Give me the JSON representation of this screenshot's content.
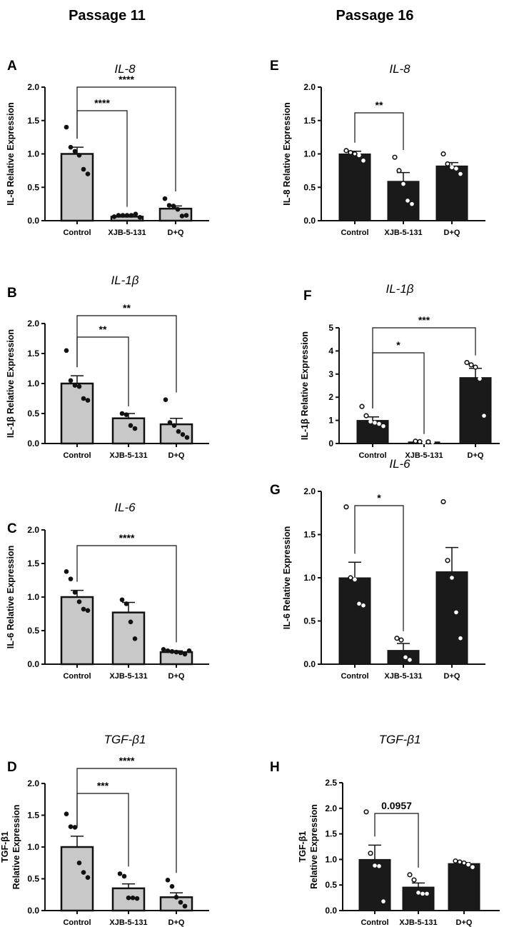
{
  "headers": [
    "Passage 11",
    "Passage 16"
  ],
  "colors": {
    "passage11_bar": "#c8c8c8",
    "passage16_bar": "#1a1a1a",
    "outline": "#111111"
  },
  "chart_data": [
    {
      "letter": "A",
      "type": "bar",
      "title": "IL-8",
      "ylabel": [
        "IL-8 Relative Expression"
      ],
      "ylim": [
        0,
        2.0
      ],
      "yticks": [
        "0.0",
        "0.5",
        "1.0",
        "1.5",
        "2.0"
      ],
      "categories": [
        "Control",
        "XJB-5-131",
        "D+Q"
      ],
      "means": [
        1.0,
        0.06,
        0.18
      ],
      "sem": [
        0.1,
        0.01,
        0.04
      ],
      "points": [
        [
          1.4,
          1.1,
          1.04,
          0.98,
          0.77,
          0.7
        ],
        [
          0.06,
          0.08,
          0.08,
          0.08,
          0.08,
          0.1,
          0.05
        ],
        [
          0.33,
          0.23,
          0.22,
          0.17,
          0.07,
          0.08
        ]
      ],
      "significance": [
        {
          "from": "Control",
          "to": "XJB-5-131",
          "label": "****"
        },
        {
          "from": "Control",
          "to": "D+Q",
          "label": "****"
        }
      ]
    },
    {
      "letter": "B",
      "type": "bar",
      "title": "IL-1β",
      "ylabel": [
        "IL-1β Relative Expression"
      ],
      "ylim": [
        0,
        2.0
      ],
      "yticks": [
        "0.0",
        "0.5",
        "1.0",
        "1.5",
        "2.0"
      ],
      "categories": [
        "Control",
        "XJB-5-131",
        "D+Q"
      ],
      "means": [
        1.0,
        0.42,
        0.32
      ],
      "sem": [
        0.13,
        0.08,
        0.1
      ],
      "points": [
        [
          1.55,
          1.05,
          0.97,
          0.95,
          0.75,
          0.72
        ],
        [
          0.5,
          0.48,
          0.3,
          0.25
        ],
        [
          0.73,
          0.35,
          0.3,
          0.2,
          0.15,
          0.1
        ]
      ],
      "significance": [
        {
          "from": "Control",
          "to": "XJB-5-131",
          "label": "**"
        },
        {
          "from": "Control",
          "to": "D+Q",
          "label": "**"
        }
      ]
    },
    {
      "letter": "C",
      "type": "bar",
      "title": "IL-6",
      "ylabel": [
        "IL-6 Relative Expression"
      ],
      "ylim": [
        0,
        2.0
      ],
      "yticks": [
        "0.0",
        "0.5",
        "1.0",
        "1.5",
        "2.0"
      ],
      "categories": [
        "Control",
        "XJB-5-131",
        "D+Q"
      ],
      "means": [
        1.0,
        0.77,
        0.18
      ],
      "sem": [
        0.1,
        0.15,
        0.02
      ],
      "points": [
        [
          1.38,
          1.27,
          1.07,
          0.93,
          0.82,
          0.8
        ],
        [
          0.96,
          0.9,
          0.63,
          0.38
        ],
        [
          0.22,
          0.2,
          0.19,
          0.18,
          0.17,
          0.15,
          0.2
        ]
      ],
      "significance": [
        {
          "from": "Control",
          "to": "D+Q",
          "label": "****"
        }
      ]
    },
    {
      "letter": "D",
      "type": "bar",
      "title": "TGF-β1",
      "ylabel": [
        "TGF-β1",
        "Relative Expression"
      ],
      "ylim": [
        0,
        2.0
      ],
      "yticks": [
        "0.0",
        "0.5",
        "1.0",
        "1.5",
        "2.0"
      ],
      "categories": [
        "Control",
        "XJB-5-131",
        "D+Q"
      ],
      "means": [
        1.0,
        0.35,
        0.21
      ],
      "sem": [
        0.17,
        0.07,
        0.07
      ],
      "points": [
        [
          1.52,
          1.32,
          1.31,
          0.75,
          0.6,
          0.52
        ],
        [
          0.58,
          0.54,
          0.2,
          0.2,
          0.19
        ],
        [
          0.48,
          0.38,
          0.21,
          0.13,
          0.07
        ]
      ],
      "significance": [
        {
          "from": "Control",
          "to": "XJB-5-131",
          "label": "***"
        },
        {
          "from": "Control",
          "to": "D+Q",
          "label": "****"
        }
      ]
    },
    {
      "letter": "E",
      "type": "bar",
      "title": "IL-8",
      "ylabel": [
        "IL-8 Relative Expression"
      ],
      "ylim": [
        0,
        2.0
      ],
      "yticks": [
        "0.0",
        "0.5",
        "1.0",
        "1.5",
        "2.0"
      ],
      "categories": [
        "Control",
        "XJB-5-131",
        "D+Q"
      ],
      "means": [
        1.0,
        0.59,
        0.82
      ],
      "sem": [
        0.04,
        0.13,
        0.05
      ],
      "points": [
        [
          1.05,
          1.02,
          1.0,
          0.98,
          0.9
        ],
        [
          0.95,
          0.75,
          0.55,
          0.3,
          0.25
        ],
        [
          1.0,
          0.85,
          0.8,
          0.78,
          0.7
        ]
      ],
      "significance": [
        {
          "from": "Control",
          "to": "XJB-5-131",
          "label": "**"
        }
      ]
    },
    {
      "letter": "F",
      "type": "bar",
      "title": "IL-1β",
      "ylabel": [
        "IL-1β Relative Expression"
      ],
      "ylim": [
        0,
        5
      ],
      "yticks": [
        "0",
        "1",
        "2",
        "3",
        "4",
        "5"
      ],
      "categories": [
        "Control",
        "XJB-5-131",
        "D+Q"
      ],
      "means": [
        1.0,
        0.07,
        2.85
      ],
      "sem": [
        0.15,
        0.02,
        0.4
      ],
      "points": [
        [
          1.6,
          1.2,
          0.95,
          0.9,
          0.85,
          0.75
        ],
        [
          0.1,
          0.08,
          0.05,
          0.07,
          0.06
        ],
        [
          3.5,
          3.4,
          3.3,
          2.8,
          1.2
        ]
      ],
      "significance": [
        {
          "from": "Control",
          "to": "XJB-5-131",
          "label": "*"
        },
        {
          "from": "Control",
          "to": "D+Q",
          "label": "***"
        }
      ]
    },
    {
      "letter": "G",
      "type": "bar",
      "title": "IL-6",
      "ylabel": [
        "IL-6 Relative Expression"
      ],
      "ylim": [
        0,
        2.0
      ],
      "yticks": [
        "0.0",
        "0.5",
        "1.0",
        "1.5",
        "2.0"
      ],
      "categories": [
        "Control",
        "XJB-5-131",
        "D+Q"
      ],
      "means": [
        1.0,
        0.16,
        1.07
      ],
      "sem": [
        0.18,
        0.08,
        0.28
      ],
      "points": [
        [
          1.82,
          1.0,
          0.98,
          0.7,
          0.68
        ],
        [
          0.3,
          0.28,
          0.08,
          0.05
        ],
        [
          1.88,
          1.2,
          1.0,
          0.6,
          0.3
        ]
      ],
      "significance": [
        {
          "from": "Control",
          "to": "XJB-5-131",
          "label": "*"
        }
      ]
    },
    {
      "letter": "H",
      "type": "bar",
      "title": "TGF-β1",
      "ylabel": [
        "TGF-β1",
        "Relative Expression"
      ],
      "ylim": [
        0,
        2.5
      ],
      "yticks": [
        "0.0",
        "0.5",
        "1.0",
        "1.5",
        "2.0",
        "2.5"
      ],
      "categories": [
        "Control",
        "XJB-5-131",
        "D+Q"
      ],
      "means": [
        1.0,
        0.46,
        0.92
      ],
      "sem": [
        0.28,
        0.08,
        0.02
      ],
      "points": [
        [
          1.93,
          1.12,
          0.88,
          0.87,
          0.18
        ],
        [
          0.7,
          0.6,
          0.35,
          0.33,
          0.33
        ],
        [
          0.97,
          0.95,
          0.93,
          0.9,
          0.85
        ]
      ],
      "significance": [
        {
          "from": "Control",
          "to": "XJB-5-131",
          "label": "0.0957"
        }
      ]
    }
  ]
}
